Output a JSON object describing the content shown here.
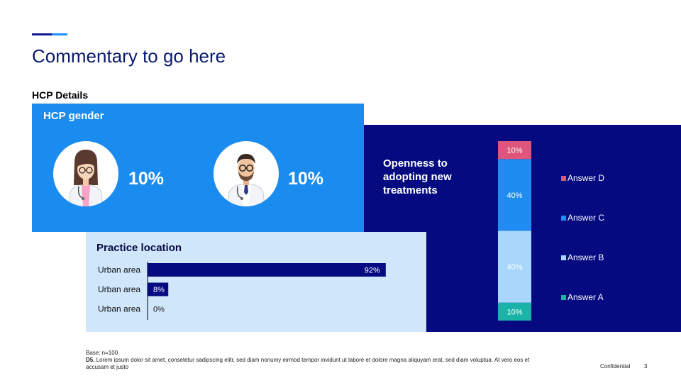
{
  "page": {
    "title": "Commentary to go here",
    "section_title": "HCP Details",
    "base": "Base: n=100",
    "question_code": "D5.",
    "question_text": "Lorem ipsum dolor sit amet, consetetur sadipscing elitr, sed diam nonumy eirmod tempor invidunt ut labore et dolore magna aliquyam erat, sed diam voluptua. At vero eos et accusam et justo",
    "confidential": "Confidential",
    "page_number": "3"
  },
  "gender": {
    "title": "HCP gender",
    "female_pct": "10%",
    "male_pct": "10%"
  },
  "openness": {
    "title": "Openness to adopting new treatments"
  },
  "location": {
    "title": "Practice location"
  },
  "colors": {
    "accent_dark": "#0a1a8c",
    "accent_light": "#1e90ff",
    "gender_panel": "#1a8cf0",
    "openness_panel": "#050a80",
    "location_panel": "#cfe6fb",
    "bar_dark": "#050a80",
    "answer_d": "#e0567a",
    "answer_c": "#1e8cf0",
    "answer_b": "#a9d6fb",
    "answer_a": "#19b3a8"
  },
  "chart_data": [
    {
      "type": "bar",
      "orientation": "horizontal",
      "title": "Practice location",
      "categories": [
        "Urban area",
        "Urban area",
        "Urban area"
      ],
      "values": [
        92,
        8,
        0
      ],
      "labels": [
        "92%",
        "8%",
        "0%"
      ],
      "xlim": [
        0,
        100
      ]
    },
    {
      "type": "bar",
      "stacked": true,
      "title": "Openness to adopting new treatments",
      "legend_position": "right",
      "series": [
        {
          "name": "Answer A",
          "values": [
            10
          ],
          "label": "10%",
          "color": "#19b3a8"
        },
        {
          "name": "Answer B",
          "values": [
            40
          ],
          "label": "40%",
          "color": "#a9d6fb"
        },
        {
          "name": "Answer C",
          "values": [
            40
          ],
          "label": "40%",
          "color": "#1e8cf0"
        },
        {
          "name": "Answer D",
          "values": [
            10
          ],
          "label": "10%",
          "color": "#e0567a"
        }
      ],
      "ylim": [
        0,
        100
      ]
    }
  ]
}
